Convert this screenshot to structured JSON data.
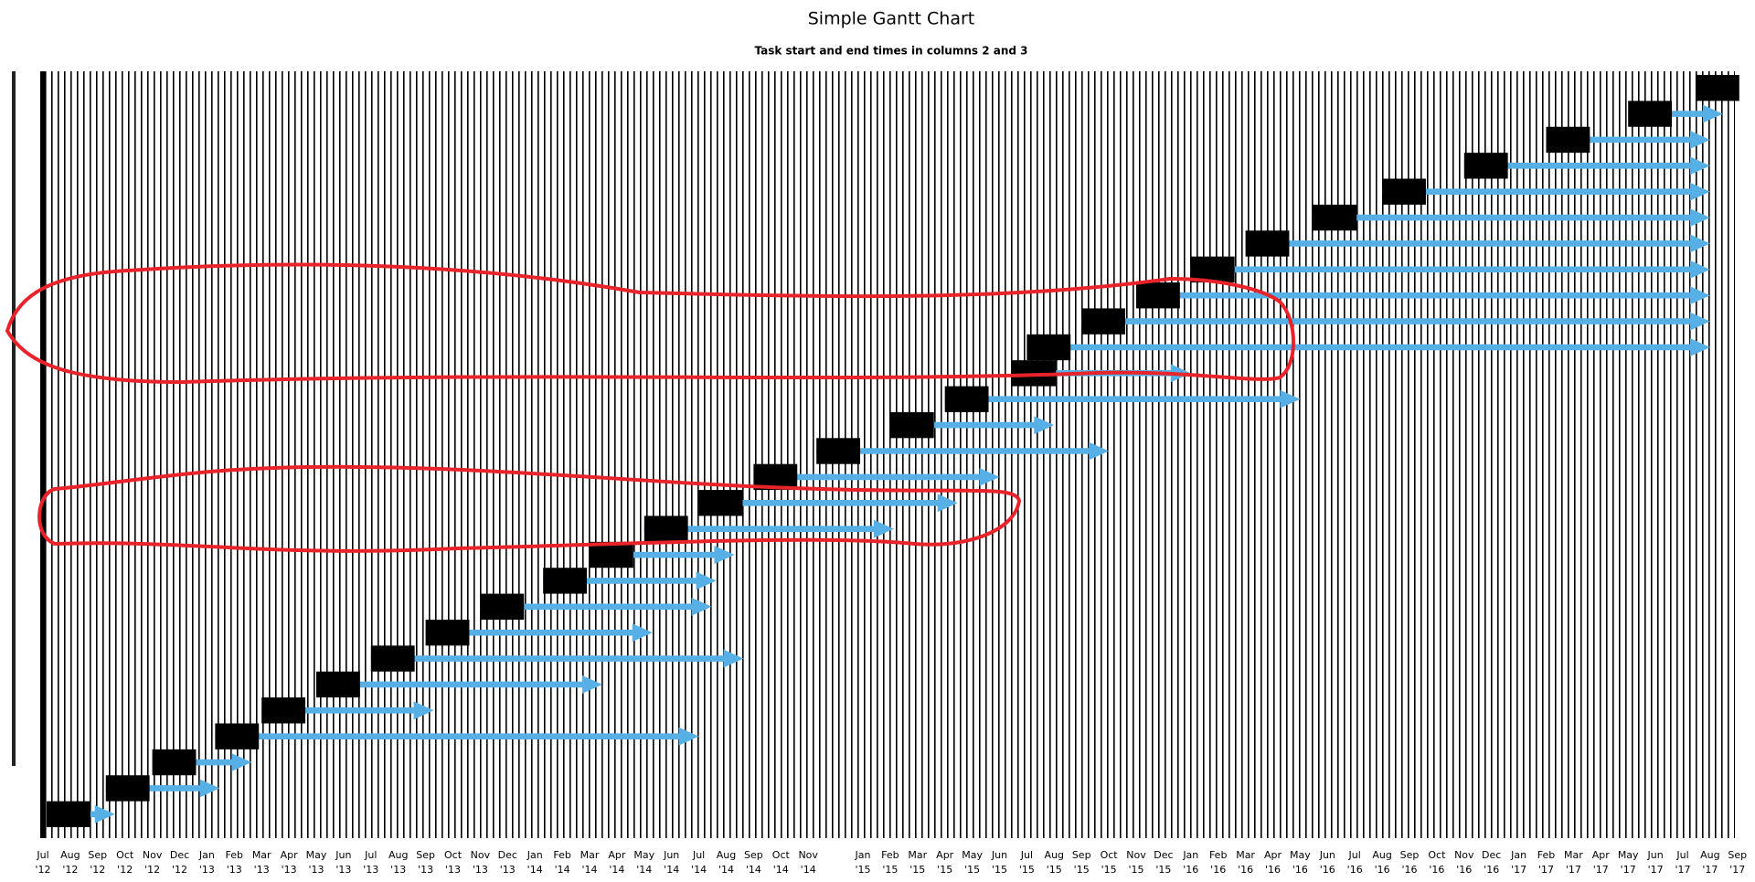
{
  "chart_data": {
    "type": "gantt",
    "title": "Simple Gantt Chart",
    "subtitle": "Task start and end times in columns 2 and 3",
    "categories": [
      [
        "Jul",
        "'12"
      ],
      [
        "Aug",
        "'12"
      ],
      [
        "Sep",
        "'12"
      ],
      [
        "Oct",
        "'12"
      ],
      [
        "Nov",
        "'12"
      ],
      [
        "Dec",
        "'12"
      ],
      [
        "Jan",
        "'13"
      ],
      [
        "Feb",
        "'13"
      ],
      [
        "Mar",
        "'13"
      ],
      [
        "Apr",
        "'13"
      ],
      [
        "May",
        "'13"
      ],
      [
        "Jun",
        "'13"
      ],
      [
        "Jul",
        "'13"
      ],
      [
        "Aug",
        "'13"
      ],
      [
        "Sep",
        "'13"
      ],
      [
        "Oct",
        "'13"
      ],
      [
        "Nov",
        "'13"
      ],
      [
        "Dec",
        "'13"
      ],
      [
        "Jan",
        "'14"
      ],
      [
        "Feb",
        "'14"
      ],
      [
        "Mar",
        "'14"
      ],
      [
        "Apr",
        "'14"
      ],
      [
        "May",
        "'14"
      ],
      [
        "Jun",
        "'14"
      ],
      [
        "Jul",
        "'14"
      ],
      [
        "Aug",
        "'14"
      ],
      [
        "Sep",
        "'14"
      ],
      [
        "Oct",
        "'14"
      ],
      [
        "Nov",
        "'14"
      ],
      null,
      [
        "Jan",
        "'15"
      ],
      [
        "Feb",
        "'15"
      ],
      [
        "Mar",
        "'15"
      ],
      [
        "Apr",
        "'15"
      ],
      [
        "May",
        "'15"
      ],
      [
        "Jun",
        "'15"
      ],
      [
        "Jul",
        "'15"
      ],
      [
        "Aug",
        "'15"
      ],
      [
        "Sep",
        "'15"
      ],
      [
        "Oct",
        "'15"
      ],
      [
        "Nov",
        "'15"
      ],
      [
        "Dec",
        "'15"
      ],
      [
        "Jan",
        "'16"
      ],
      [
        "Feb",
        "'16"
      ],
      [
        "Mar",
        "'16"
      ],
      [
        "Apr",
        "'16"
      ],
      [
        "May",
        "'16"
      ],
      [
        "Jun",
        "'16"
      ],
      [
        "Jul",
        "'16"
      ],
      [
        "Aug",
        "'16"
      ],
      [
        "Sep",
        "'16"
      ],
      [
        "Oct",
        "'16"
      ],
      [
        "Nov",
        "'16"
      ],
      [
        "Dec",
        "'16"
      ],
      [
        "Jan",
        "'17"
      ],
      [
        "Feb",
        "'17"
      ],
      [
        "Mar",
        "'17"
      ],
      [
        "Apr",
        "'17"
      ],
      [
        "May",
        "'17"
      ],
      [
        "Jun",
        "'17"
      ],
      [
        "Jul",
        "'17"
      ],
      [
        "Aug",
        "'17"
      ],
      [
        "Sep",
        "'17"
      ]
    ],
    "start_color": "#000000",
    "color": "#56b0e6",
    "tasks": [
      {
        "start": "2012-07-05",
        "end": "2012-09-20"
      },
      {
        "start": "2012-09-10",
        "end": "2013-01-15"
      },
      {
        "start": "2012-11-01",
        "end": "2013-02-20"
      },
      {
        "start": "2013-01-10",
        "end": "2014-07-01"
      },
      {
        "start": "2013-03-01",
        "end": "2013-09-10"
      },
      {
        "start": "2013-05-01",
        "end": "2014-03-15"
      },
      {
        "start": "2013-07-01",
        "end": "2014-08-20"
      },
      {
        "start": "2013-09-01",
        "end": "2014-05-10"
      },
      {
        "start": "2013-11-01",
        "end": "2014-07-15"
      },
      {
        "start": "2014-01-10",
        "end": "2014-07-20"
      },
      {
        "start": "2014-03-01",
        "end": "2014-08-10"
      },
      {
        "start": "2014-05-01",
        "end": "2015-02-05"
      },
      {
        "start": "2014-07-01",
        "end": "2015-04-15"
      },
      {
        "start": "2014-09-01",
        "end": "2015-06-01"
      },
      {
        "start": "2014-11-10",
        "end": "2015-10-01"
      },
      {
        "start": "2015-02-01",
        "end": "2015-08-01"
      },
      {
        "start": "2015-04-01",
        "end": "2016-05-01"
      },
      {
        "start": "2015-06-15",
        "end": "2016-01-01"
      },
      {
        "start": "2015-07-01",
        "end": "2017-08-01"
      },
      {
        "start": "2015-09-01",
        "end": "2017-08-01"
      },
      {
        "start": "2015-11-01",
        "end": "2017-08-01"
      },
      {
        "start": "2016-01-01",
        "end": "2017-08-01"
      },
      {
        "start": "2016-03-01",
        "end": "2017-08-01"
      },
      {
        "start": "2016-05-15",
        "end": "2017-08-01"
      },
      {
        "start": "2016-08-01",
        "end": "2017-08-01"
      },
      {
        "start": "2016-11-01",
        "end": "2017-08-01"
      },
      {
        "start": "2017-02-01",
        "end": "2017-08-01"
      },
      {
        "start": "2017-05-01",
        "end": "2017-08-15"
      },
      {
        "start": "2017-07-15",
        "end": "2017-08-20"
      }
    ]
  }
}
